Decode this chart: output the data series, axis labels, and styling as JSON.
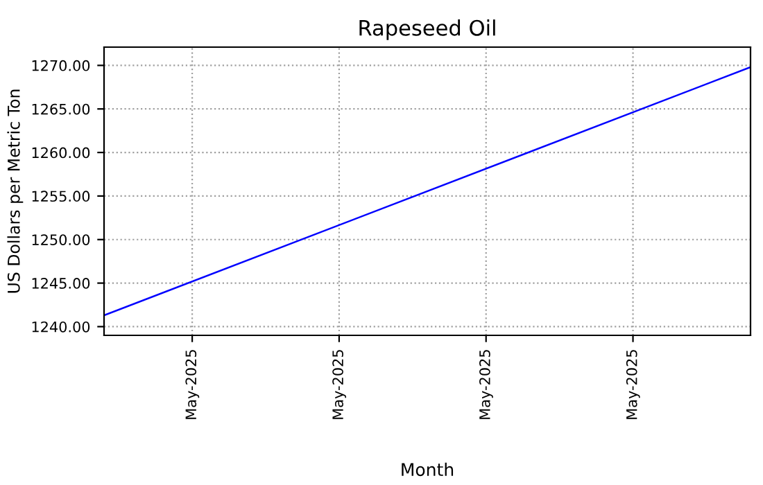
{
  "chart_data": {
    "type": "line",
    "title": "Rapeseed Oil",
    "xlabel": "Month",
    "ylabel": "US Dollars per Metric Ton",
    "x": [
      "2025-05-02",
      "2025-05-24"
    ],
    "series": [
      {
        "color": "#0000ff",
        "values": [
          1241.3,
          1269.8
        ]
      }
    ],
    "xlim": [
      "2025-05-02",
      "2025-05-24"
    ],
    "xticks": [
      {
        "value": "2025-05-05",
        "label": "May-2025"
      },
      {
        "value": "2025-05-10",
        "label": "May-2025"
      },
      {
        "value": "2025-05-15",
        "label": "May-2025"
      },
      {
        "value": "2025-05-20",
        "label": "May-2025"
      }
    ],
    "ylim": [
      1239.0,
      1272.1
    ],
    "yticks": [
      {
        "value": 1240,
        "label": "1240.00"
      },
      {
        "value": 1245,
        "label": "1245.00"
      },
      {
        "value": 1250,
        "label": "1250.00"
      },
      {
        "value": 1255,
        "label": "1255.00"
      },
      {
        "value": 1260,
        "label": "1260.00"
      },
      {
        "value": 1265,
        "label": "1265.00"
      },
      {
        "value": 1270,
        "label": "1270.00"
      }
    ],
    "grid": true,
    "legend": false,
    "marker": "none",
    "line_style": "solid"
  }
}
